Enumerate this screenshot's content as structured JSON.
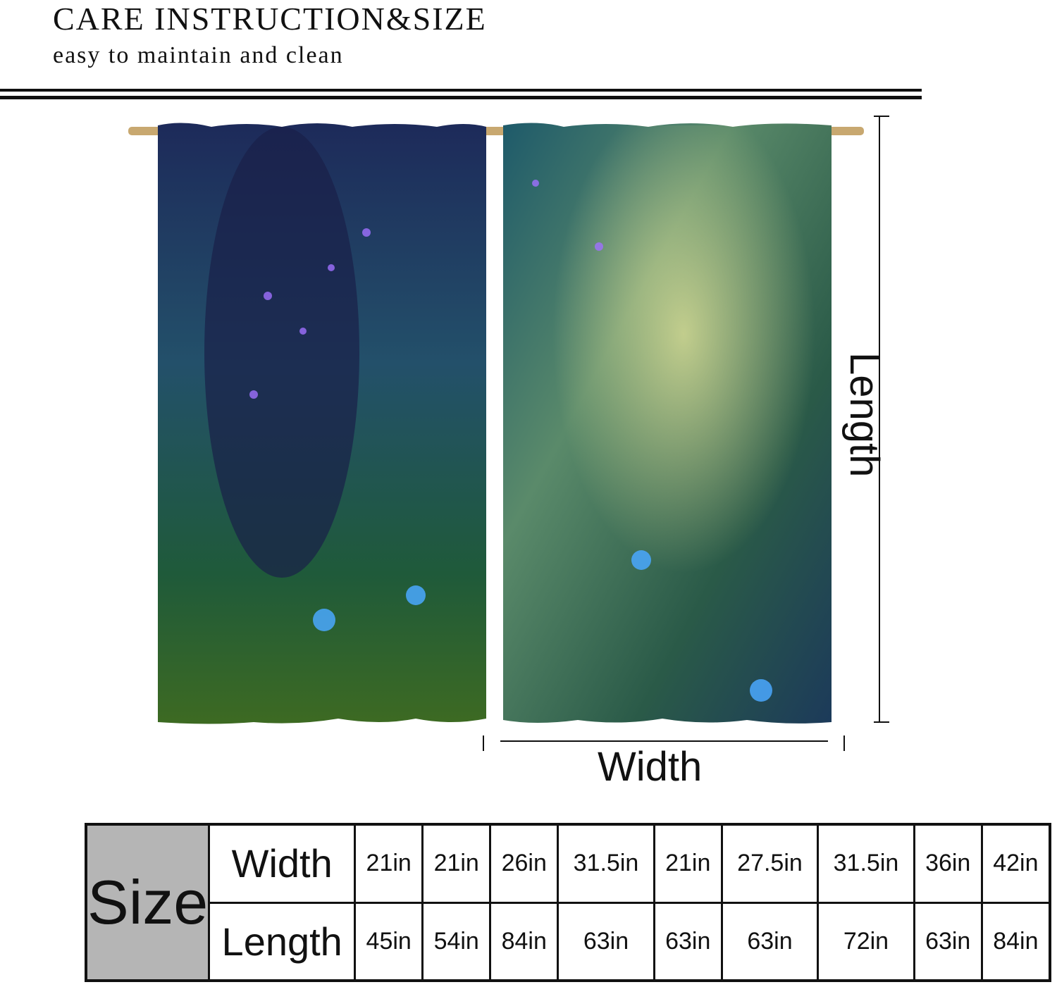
{
  "header": {
    "title": "CARE INSTRUCTION&SIZE",
    "subtitle": "easy to maintain and clean"
  },
  "diagram": {
    "width_label": "Width",
    "length_label": "Length"
  },
  "table": {
    "size_label": "Size",
    "rows": [
      [
        "Width",
        "21in",
        "21in",
        "26in",
        "31.5in",
        "21in",
        "27.5in",
        "31.5in",
        "36in",
        "42in"
      ],
      [
        "Length",
        "45in",
        "54in",
        "84in",
        "63in",
        "63in",
        "63in",
        "72in",
        "63in",
        "84in"
      ]
    ]
  }
}
